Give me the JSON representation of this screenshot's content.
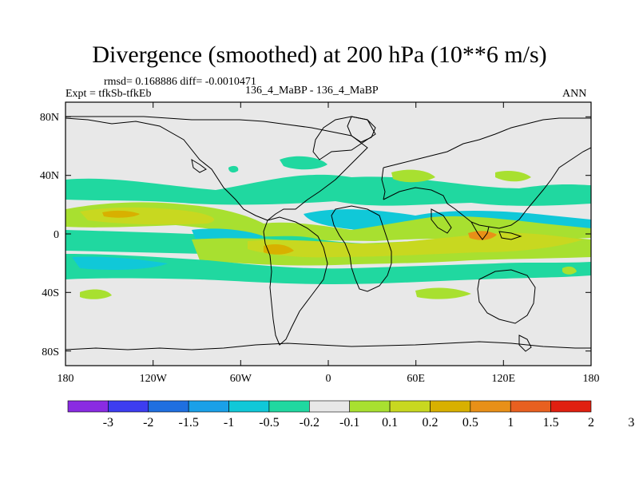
{
  "header": {
    "title": "Divergence (smoothed) at 200 hPa (10**6 m/s)",
    "stats": "rmsd= 0.168886 diff= -0.0010471",
    "left_label": "Expt = tfkSb-tfkEb",
    "center_label": "136_4_MaBP - 136_4_MaBP",
    "right_label": "ANN"
  },
  "axes": {
    "lon_ticks": [
      "180",
      "120W",
      "60W",
      "0",
      "60E",
      "120E",
      "180"
    ],
    "lat_ticks": [
      "80N",
      "40N",
      "0",
      "40S",
      "80S"
    ]
  },
  "colorbar": {
    "colors": [
      "#8a2be2",
      "#3d3df0",
      "#1f6fe0",
      "#1aa0e8",
      "#10c8d8",
      "#20d8a0",
      "#e8e8e8",
      "#a8e030",
      "#c8d820",
      "#d8b000",
      "#e89018",
      "#e86020",
      "#e02010"
    ],
    "labels": [
      "-3",
      "-2",
      "-1.5",
      "-1",
      "-0.5",
      "-0.2",
      "-0.1",
      "0.1",
      "0.2",
      "0.5",
      "1",
      "1.5",
      "2",
      "3"
    ]
  },
  "chart_data": {
    "type": "heatmap",
    "title": "Divergence (smoothed) at 200 hPa (10**6 m/s)",
    "lon_range": [
      -180,
      180
    ],
    "lat_range": [
      -90,
      90
    ],
    "levels": [
      -3,
      -2,
      -1.5,
      -1,
      -0.5,
      -0.2,
      -0.1,
      0.1,
      0.2,
      0.5,
      1,
      1.5,
      2,
      3
    ],
    "features": [
      {
        "name": "north-convergence-band",
        "value": -0.2,
        "lon": [
          -180,
          180
        ],
        "lat": [
          28,
          40
        ]
      },
      {
        "name": "north-divergence-band",
        "value": 0.2,
        "lon": [
          -180,
          180
        ],
        "lat": [
          10,
          22
        ]
      },
      {
        "name": "divergence-max-pacific-north",
        "value": 0.5,
        "lon": -145,
        "lat": 15
      },
      {
        "name": "equatorial-convergence",
        "value": -0.5,
        "lon": [
          -180,
          180
        ],
        "lat": [
          -5,
          8
        ]
      },
      {
        "name": "south-divergence-band",
        "value": 0.2,
        "lon": [
          -180,
          180
        ],
        "lat": [
          -18,
          -6
        ]
      },
      {
        "name": "divergence-max-indian",
        "value": 1.0,
        "lon": 110,
        "lat": 0
      },
      {
        "name": "divergence-max-atlantic",
        "value": 0.5,
        "lon": -38,
        "lat": -10
      },
      {
        "name": "south-convergence-band",
        "value": -0.2,
        "lon": [
          -180,
          180
        ],
        "lat": [
          -34,
          -20
        ]
      }
    ]
  }
}
